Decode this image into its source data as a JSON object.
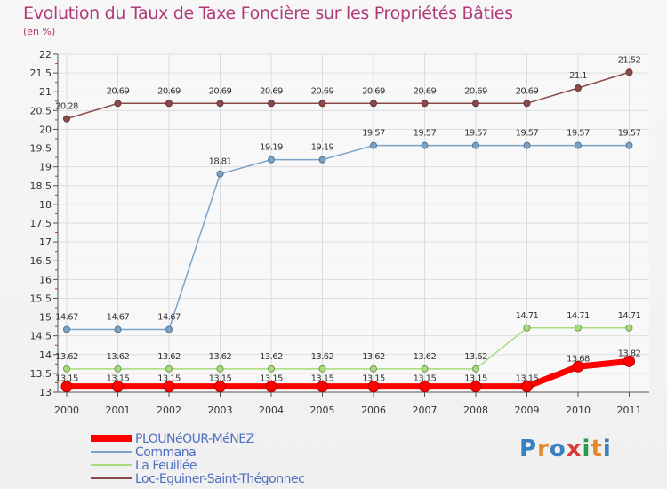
{
  "chart_data": {
    "type": "line",
    "title": "Evolution du Taux de Taxe Foncière sur les Propriétés Bâties",
    "ylabel": "(en %)",
    "xlabel": "",
    "categories": [
      "2000",
      "2001",
      "2002",
      "2003",
      "2004",
      "2005",
      "2006",
      "2007",
      "2008",
      "2009",
      "2010",
      "2011"
    ],
    "ylim": [
      13,
      22
    ],
    "yticks": [
      "13",
      "13.5",
      "14",
      "14.5",
      "15",
      "15.5",
      "16",
      "16.5",
      "17",
      "17.5",
      "18",
      "18.5",
      "19",
      "19.5",
      "20",
      "20.5",
      "21",
      "21.5",
      "22"
    ],
    "grid": true,
    "legend_position": "bottom-left",
    "series": [
      {
        "name": "PLOUNéOUR-MéNEZ",
        "color": "#ff0000",
        "values": [
          13.15,
          13.15,
          13.15,
          13.15,
          13.15,
          13.15,
          13.15,
          13.15,
          13.15,
          13.15,
          13.68,
          13.82
        ],
        "labels": [
          "13.15",
          "13.15",
          "13.15",
          "13.15",
          "13.15",
          "13.15",
          "13.15",
          "13.15",
          "13.15",
          "13.15",
          "13.68",
          "13.82"
        ]
      },
      {
        "name": "Commana",
        "color": "#7aa3c8",
        "values": [
          14.67,
          14.67,
          14.67,
          18.81,
          19.19,
          19.19,
          19.57,
          19.57,
          19.57,
          19.57,
          19.57,
          19.57
        ],
        "labels": [
          "14.67",
          "14.67",
          "14.67",
          "18.81",
          "19.19",
          "19.19",
          "19.57",
          "19.57",
          "19.57",
          "19.57",
          "19.57",
          "19.57"
        ]
      },
      {
        "name": "La Feuillée",
        "color": "#a6dc7d",
        "values": [
          13.62,
          13.62,
          13.62,
          13.62,
          13.62,
          13.62,
          13.62,
          13.62,
          13.62,
          14.71,
          14.71,
          14.71
        ],
        "labels": [
          "13.62",
          "13.62",
          "13.62",
          "13.62",
          "13.62",
          "13.62",
          "13.62",
          "13.62",
          "13.62",
          "14.71",
          "14.71",
          "14.71"
        ]
      },
      {
        "name": "Loc-Eguiner-Saint-Thégonnec",
        "color": "#8b4a4a",
        "values": [
          20.28,
          20.69,
          20.69,
          20.69,
          20.69,
          20.69,
          20.69,
          20.69,
          20.69,
          20.69,
          21.1,
          21.52
        ],
        "labels": [
          "20.28",
          "20.69",
          "20.69",
          "20.69",
          "20.69",
          "20.69",
          "20.69",
          "20.69",
          "20.69",
          "20.69",
          "21.1",
          "21.52"
        ]
      }
    ]
  },
  "logo": {
    "text": "Proxiti",
    "letters": [
      "P",
      "r",
      "o",
      "x",
      "i",
      "t",
      "i"
    ],
    "colors": [
      "#3a7fc1",
      "#e08a2a",
      "#3a7fc1",
      "#d93a3a",
      "#2a9a4a",
      "#e08a2a",
      "#3a7fc1"
    ]
  }
}
